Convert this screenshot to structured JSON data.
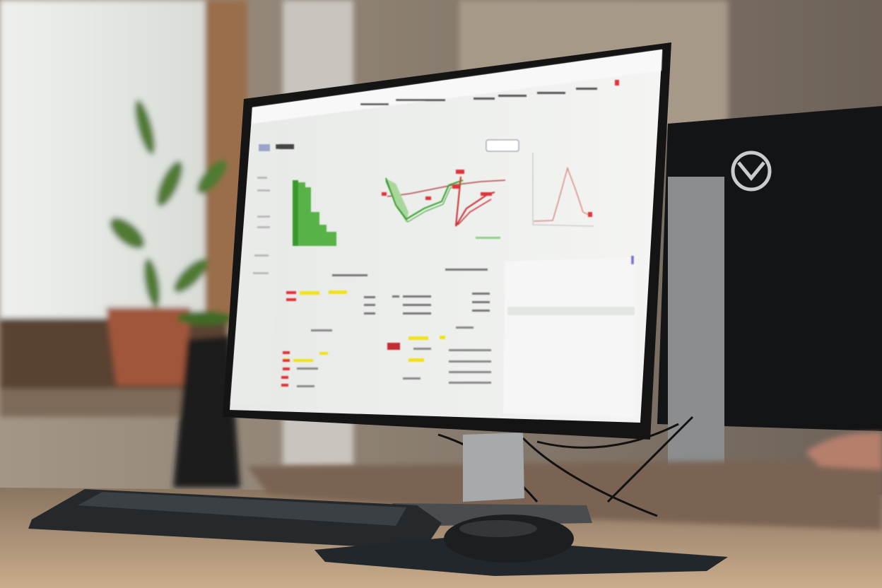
{
  "scene": {
    "description_tags": [
      "desk",
      "monitor",
      "keyboard",
      "mouse",
      "plant",
      "window"
    ],
    "colors": {
      "wall": "#8f8273",
      "window_light": "#e9ebe8",
      "desk": "#b89c7e",
      "screen": "#eef0ee",
      "bezel": "#161616",
      "chart_green": "#4caf3c",
      "chart_red": "#e0313a",
      "highlight_yellow": "#f1e21c"
    }
  },
  "screen": {
    "charts": [
      {
        "kind": "bar",
        "color": "chart_green"
      },
      {
        "kind": "line",
        "colors": [
          "chart_green",
          "chart_red"
        ]
      },
      {
        "kind": "line",
        "color": "chart_red"
      }
    ]
  },
  "icons": [
    "monitor-logo-icon"
  ]
}
